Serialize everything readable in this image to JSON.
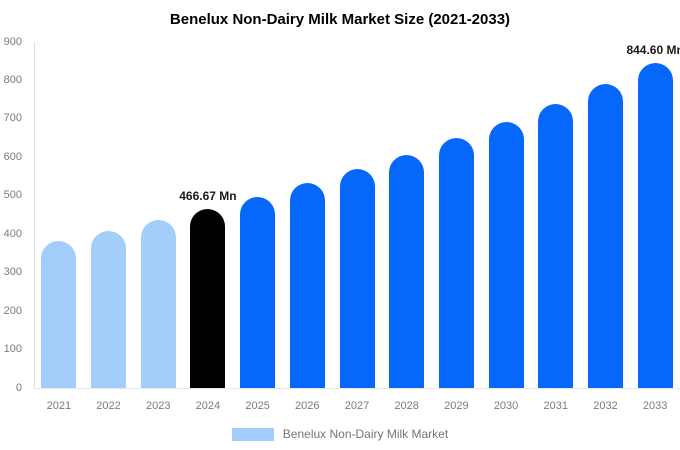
{
  "title": "Benelux Non-Dairy Milk Market Size (2021-2033)",
  "legend": {
    "label": "Benelux Non-Dairy Milk Market",
    "swatch_color": "#a3cefb"
  },
  "colors": {
    "historical_bar": "#a3cefb",
    "highlight_bar": "#000000",
    "forecast_bar": "#0668fb",
    "title_text": "#000000",
    "tick_label": "#7a7a7a",
    "annotation_text": "#1a1a1a"
  },
  "chart_data": {
    "type": "bar",
    "title": "Benelux Non-Dairy Milk Market Size (2021-2033)",
    "unit": "Mn",
    "categories": [
      "2021",
      "2022",
      "2023",
      "2024",
      "2025",
      "2026",
      "2027",
      "2028",
      "2029",
      "2030",
      "2031",
      "2032",
      "2033"
    ],
    "values": [
      383,
      409,
      437,
      466.67,
      498,
      532,
      569,
      607,
      649,
      693,
      740,
      791,
      844.6
    ],
    "bar_colors": [
      "#a3cefb",
      "#a3cefb",
      "#a3cefb",
      "#000000",
      "#0668fb",
      "#0668fb",
      "#0668fb",
      "#0668fb",
      "#0668fb",
      "#0668fb",
      "#0668fb",
      "#0668fb",
      "#0668fb"
    ],
    "ylim": [
      0,
      900
    ],
    "yticks": [
      0,
      100,
      200,
      300,
      400,
      500,
      600,
      700,
      800,
      900
    ],
    "grid": false,
    "legend": [
      "Benelux Non-Dairy Milk Market"
    ],
    "legend_position": "bottom",
    "annotations": [
      {
        "category": "2024",
        "text": "466.67 Mn"
      },
      {
        "category": "2033",
        "text": "844.60 Mn"
      }
    ]
  }
}
